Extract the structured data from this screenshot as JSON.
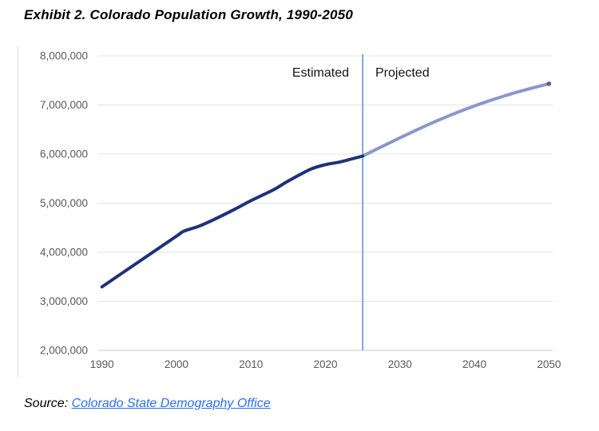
{
  "title": "Exhibit 2. Colorado Population Growth, 1990-2050",
  "annotations": {
    "left_label": "Estimated",
    "right_label": "Projected"
  },
  "source": {
    "prefix": "Source: ",
    "link_text": "Colorado State Demography Office"
  },
  "colors": {
    "estimated_line": "#1F3278",
    "projected_line": "#8A97CB",
    "end_marker": "#4F5E9F",
    "divider_line": "#7FA8D9",
    "gridline": "#E4E4E4",
    "axis_line": "#C9C9C9",
    "left_border": "#E0E0E0",
    "axis_text": "#595959",
    "link_blue": "#2D6EEA"
  },
  "chart_data": {
    "type": "line",
    "title": "Exhibit 2. Colorado Population Growth, 1990-2050",
    "xlabel": "",
    "ylabel": "",
    "xlim": [
      1990,
      2050
    ],
    "ylim": [
      2000000,
      8000000
    ],
    "grid": "horizontal",
    "legend_position": "none (inline text labels inside plot)",
    "divider_x": 2025,
    "divider_labels": [
      "Estimated",
      "Projected"
    ],
    "x_ticks": [
      1990,
      2000,
      2010,
      2020,
      2030,
      2040,
      2050
    ],
    "y_ticks": [
      {
        "value": 8000000,
        "label": "8,000,000"
      },
      {
        "value": 7000000,
        "label": "7,000,000"
      },
      {
        "value": 6000000,
        "label": "6,000,000"
      },
      {
        "value": 5000000,
        "label": "5,000,000"
      },
      {
        "value": 4000000,
        "label": "4,000,000"
      },
      {
        "value": 3000000,
        "label": "3,000,000"
      },
      {
        "value": 2000000,
        "label": "2,000,000"
      }
    ],
    "series": [
      {
        "name": "Estimated",
        "x": [
          1990,
          1995,
          2000,
          2001,
          2003,
          2005,
          2008,
          2010,
          2013,
          2015,
          2018,
          2020,
          2022,
          2025
        ],
        "values": [
          3294000,
          3811000,
          4327000,
          4430000,
          4529000,
          4663000,
          4890000,
          5050000,
          5270000,
          5450000,
          5690000,
          5784000,
          5841000,
          5960000
        ]
      },
      {
        "name": "Projected",
        "x": [
          2025,
          2030,
          2035,
          2040,
          2045,
          2050
        ],
        "values": [
          5960000,
          6330000,
          6680000,
          6980000,
          7230000,
          7432000
        ]
      }
    ]
  }
}
